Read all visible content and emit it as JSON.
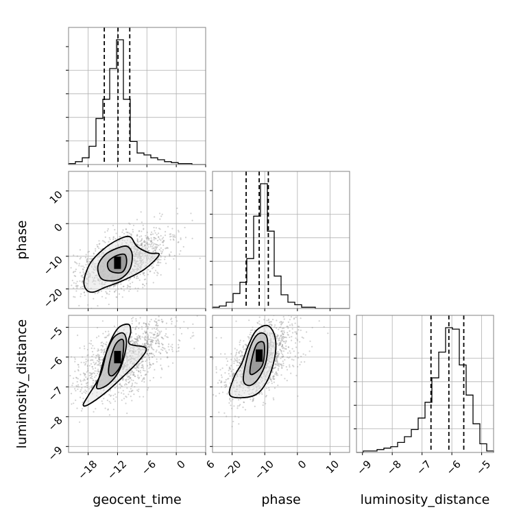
{
  "chart_data": {
    "type": "corner",
    "parameters": [
      "geocent_time",
      "phase",
      "luminosity_distance"
    ],
    "axes": {
      "geocent_time": {
        "range": [
          -22,
          6
        ],
        "ticks": [
          -18,
          -12,
          -6,
          0,
          6
        ]
      },
      "phase": {
        "range": [
          -26,
          16
        ],
        "ticks": [
          -20,
          -10,
          0,
          10
        ],
        "ticks_y": [
          -20,
          -10,
          0,
          10
        ]
      },
      "luminosity_distance": {
        "range": [
          -9.2,
          -4.6
        ],
        "ticks": [
          -9,
          -8,
          -7,
          -6,
          -5
        ],
        "ticks_y": [
          -9,
          -8,
          -7,
          -6,
          -5
        ]
      }
    },
    "quantiles": {
      "geocent_time": [
        -14.7,
        -11.9,
        -9.5
      ],
      "phase": [
        -15.7,
        -11.7,
        -8.9
      ],
      "luminosity_distance": [
        -6.7,
        -6.1,
        -5.6
      ]
    },
    "histograms": {
      "geocent_time": {
        "edges": [
          -22,
          -20.6,
          -19.2,
          -17.8,
          -16.4,
          -15,
          -13.6,
          -12.2,
          -10.8,
          -9.4,
          -8,
          -6.6,
          -5.2,
          -3.8,
          -2.4,
          -1,
          0.4,
          1.8,
          3.2,
          4.6,
          6
        ],
        "counts": [
          1,
          3,
          7,
          19,
          48,
          68,
          100,
          130,
          68,
          24,
          12,
          10,
          7,
          5,
          3,
          2,
          1,
          1,
          0,
          0
        ]
      },
      "phase": {
        "edges": [
          -26,
          -23.9,
          -21.8,
          -19.7,
          -17.6,
          -15.5,
          -13.4,
          -11.3,
          -9.2,
          -7.1,
          -5,
          -2.9,
          -0.8,
          1.3,
          3.4,
          5.5,
          7.6,
          9.7,
          11.8,
          13.9,
          16
        ],
        "counts": [
          1,
          2,
          5,
          12,
          21,
          40,
          74,
          100,
          62,
          26,
          11,
          5,
          3,
          1,
          1,
          0,
          0,
          0,
          0,
          0
        ]
      },
      "luminosity_distance": {
        "edges": [
          -9.2,
          -8.97,
          -8.74,
          -8.51,
          -8.28,
          -8.05,
          -7.82,
          -7.59,
          -7.36,
          -7.13,
          -6.9,
          -6.67,
          -6.44,
          -6.21,
          -5.98,
          -5.75,
          -5.52,
          -5.29,
          -5.06,
          -4.83,
          -4.6
        ],
        "counts": [
          0,
          1,
          1,
          2,
          3,
          4,
          7,
          11,
          16,
          24,
          35,
          52,
          70,
          87,
          86,
          61,
          40,
          20,
          6,
          1
        ]
      }
    },
    "pairs": [
      {
        "x": "geocent_time",
        "y": "phase",
        "peak": [
          -12,
          -12
        ],
        "contours": [
          [
            [
              -18.5,
              -20
            ],
            [
              -18.8,
              -17
            ],
            [
              -17.5,
              -12
            ],
            [
              -15,
              -8
            ],
            [
              -12,
              -5
            ],
            [
              -9.5,
              -4
            ],
            [
              -8,
              -7
            ],
            [
              -5.5,
              -9
            ],
            [
              -3.5,
              -9.5
            ],
            [
              -6.5,
              -14
            ],
            [
              -11,
              -17.5
            ],
            [
              -14.5,
              -19.5
            ],
            [
              -17,
              -21
            ]
          ],
          [
            [
              -15.5,
              -16.5
            ],
            [
              -16,
              -13
            ],
            [
              -14.5,
              -9.5
            ],
            [
              -12,
              -7.5
            ],
            [
              -10,
              -7
            ],
            [
              -9,
              -9.5
            ],
            [
              -9.5,
              -14
            ],
            [
              -11.5,
              -17
            ],
            [
              -14,
              -17.5
            ]
          ],
          [
            [
              -13.5,
              -14.5
            ],
            [
              -14,
              -12
            ],
            [
              -12.5,
              -10
            ],
            [
              -10.5,
              -9.5
            ],
            [
              -10.2,
              -12.5
            ],
            [
              -11.2,
              -15
            ]
          ]
        ]
      },
      {
        "x": "geocent_time",
        "y": "luminosity_distance",
        "peak": [
          -12,
          -6.0
        ],
        "contours": [
          [
            [
              -19,
              -7.6
            ],
            [
              -18,
              -7.3
            ],
            [
              -15.5,
              -6.6
            ],
            [
              -14,
              -5.7
            ],
            [
              -12,
              -5.05
            ],
            [
              -9.8,
              -4.9
            ],
            [
              -9.3,
              -5.15
            ],
            [
              -9.6,
              -5.55
            ],
            [
              -6.2,
              -5.7
            ],
            [
              -7.5,
              -6.1
            ],
            [
              -10.5,
              -6.6
            ],
            [
              -14.5,
              -7.2
            ],
            [
              -18,
              -7.6
            ]
          ],
          [
            [
              -16.2,
              -7.05
            ],
            [
              -15.6,
              -6.6
            ],
            [
              -14.5,
              -5.95
            ],
            [
              -12.8,
              -5.35
            ],
            [
              -10.8,
              -5.2
            ],
            [
              -10.2,
              -5.6
            ],
            [
              -11.5,
              -6.4
            ],
            [
              -13.8,
              -6.9
            ]
          ],
          [
            [
              -13.8,
              -6.55
            ],
            [
              -13.5,
              -6.1
            ],
            [
              -12.3,
              -5.55
            ],
            [
              -10.8,
              -5.45
            ],
            [
              -11.2,
              -6.2
            ],
            [
              -12.8,
              -6.6
            ]
          ]
        ]
      },
      {
        "x": "phase",
        "y": "luminosity_distance",
        "peak": [
          -11.7,
          -5.95
        ],
        "contours": [
          [
            [
              -20.5,
              -7.3
            ],
            [
              -19.5,
              -6.7
            ],
            [
              -17,
              -6.2
            ],
            [
              -15,
              -5.6
            ],
            [
              -12.5,
              -5.1
            ],
            [
              -9,
              -4.95
            ],
            [
              -6.8,
              -5.35
            ],
            [
              -7,
              -6.05
            ],
            [
              -9.5,
              -6.85
            ],
            [
              -13.5,
              -7.3
            ]
          ],
          [
            [
              -16.5,
              -6.8
            ],
            [
              -15.8,
              -6.2
            ],
            [
              -13.8,
              -5.5
            ],
            [
              -11.5,
              -5.2
            ],
            [
              -9.3,
              -5.35
            ],
            [
              -9.5,
              -6.1
            ],
            [
              -11.8,
              -6.7
            ],
            [
              -14.5,
              -6.95
            ]
          ],
          [
            [
              -14.5,
              -6.55
            ],
            [
              -13.8,
              -6.0
            ],
            [
              -12.3,
              -5.55
            ],
            [
              -10.2,
              -5.55
            ],
            [
              -10.5,
              -6.2
            ],
            [
              -12.5,
              -6.5
            ]
          ]
        ]
      }
    ],
    "scatter": {
      "geocent_time": {
        "mean": -11.0,
        "sd": 4.5
      },
      "phase": {
        "mean": -11.5,
        "sd": 4.8
      },
      "luminosity_distance": {
        "mean": -6.1,
        "sd": 0.65
      },
      "n": 1400
    },
    "grid": true,
    "colors": {
      "line": "#000000",
      "scatter": "#9a9a9a",
      "grid": "#b0b0b0",
      "spine": "#808080"
    }
  }
}
